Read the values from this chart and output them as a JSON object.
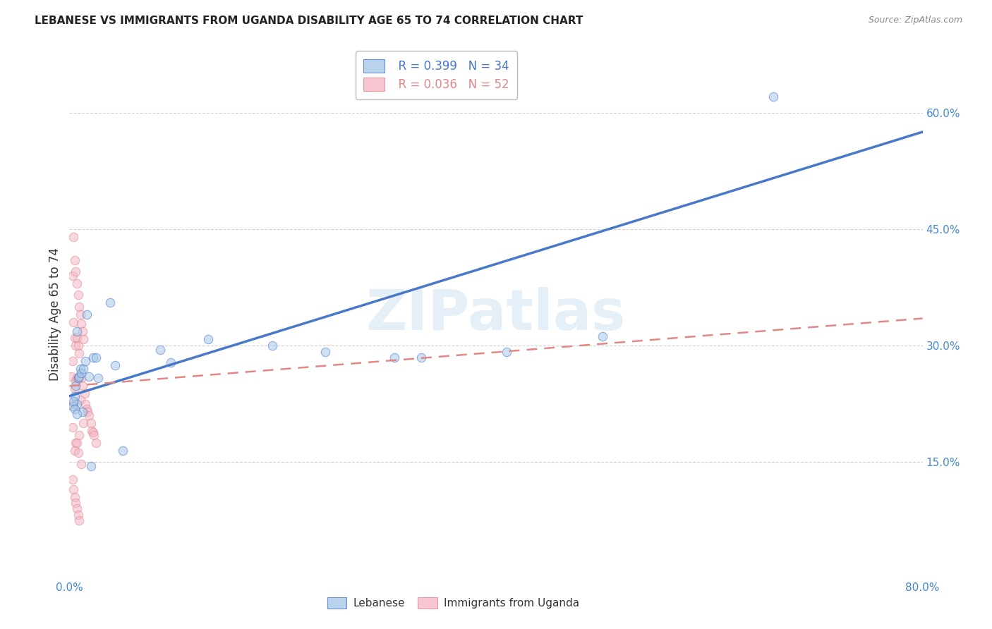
{
  "title": "LEBANESE VS IMMIGRANTS FROM UGANDA DISABILITY AGE 65 TO 74 CORRELATION CHART",
  "source": "Source: ZipAtlas.com",
  "ylabel": "Disability Age 65 to 74",
  "xlim": [
    0.0,
    0.8
  ],
  "ylim": [
    0.0,
    0.68
  ],
  "ytick_positions": [
    0.15,
    0.3,
    0.45,
    0.6
  ],
  "ytick_labels": [
    "15.0%",
    "30.0%",
    "45.0%",
    "60.0%"
  ],
  "grid_yticks": [
    0.15,
    0.3,
    0.45,
    0.6
  ],
  "grid_color": "#cccccc",
  "background_color": "#ffffff",
  "color_lebanese": "#a8c8e8",
  "color_uganda": "#f4b8c8",
  "color_line1": "#4878c8",
  "color_line2": "#e08888",
  "marker_size": 80,
  "marker_alpha": 0.55,
  "lebanese_x": [
    0.005,
    0.006,
    0.007,
    0.007,
    0.008,
    0.009,
    0.01,
    0.011,
    0.012,
    0.013,
    0.015,
    0.016,
    0.018,
    0.02,
    0.022,
    0.025,
    0.027,
    0.038,
    0.043,
    0.05,
    0.085,
    0.095,
    0.13,
    0.19,
    0.24,
    0.305,
    0.33,
    0.41,
    0.5,
    0.66,
    0.003,
    0.004,
    0.005,
    0.007
  ],
  "lebanese_y": [
    0.235,
    0.248,
    0.225,
    0.318,
    0.258,
    0.26,
    0.27,
    0.265,
    0.215,
    0.27,
    0.28,
    0.34,
    0.26,
    0.145,
    0.285,
    0.285,
    0.258,
    0.355,
    0.275,
    0.165,
    0.295,
    0.278,
    0.308,
    0.3,
    0.292,
    0.285,
    0.285,
    0.292,
    0.312,
    0.62,
    0.222,
    0.228,
    0.218,
    0.212
  ],
  "uganda_x": [
    0.002,
    0.003,
    0.003,
    0.003,
    0.004,
    0.004,
    0.004,
    0.005,
    0.005,
    0.005,
    0.005,
    0.006,
    0.006,
    0.006,
    0.006,
    0.007,
    0.007,
    0.007,
    0.007,
    0.008,
    0.008,
    0.008,
    0.008,
    0.009,
    0.009,
    0.009,
    0.01,
    0.01,
    0.011,
    0.011,
    0.011,
    0.012,
    0.012,
    0.013,
    0.013,
    0.014,
    0.015,
    0.016,
    0.017,
    0.018,
    0.02,
    0.021,
    0.022,
    0.023,
    0.025,
    0.003,
    0.004,
    0.005,
    0.006,
    0.007,
    0.008,
    0.009
  ],
  "uganda_y": [
    0.26,
    0.39,
    0.28,
    0.195,
    0.44,
    0.33,
    0.225,
    0.41,
    0.31,
    0.245,
    0.165,
    0.395,
    0.3,
    0.255,
    0.175,
    0.38,
    0.31,
    0.258,
    0.175,
    0.365,
    0.3,
    0.258,
    0.162,
    0.35,
    0.29,
    0.185,
    0.34,
    0.23,
    0.328,
    0.258,
    0.148,
    0.318,
    0.248,
    0.308,
    0.2,
    0.238,
    0.225,
    0.218,
    0.215,
    0.21,
    0.2,
    0.19,
    0.188,
    0.185,
    0.175,
    0.128,
    0.115,
    0.105,
    0.098,
    0.09,
    0.082,
    0.075
  ],
  "line1_x0": 0.0,
  "line1_y0": 0.235,
  "line1_x1": 0.8,
  "line1_y1": 0.575,
  "line2_x0": 0.0,
  "line2_y0": 0.248,
  "line2_x1": 0.8,
  "line2_y1": 0.335
}
